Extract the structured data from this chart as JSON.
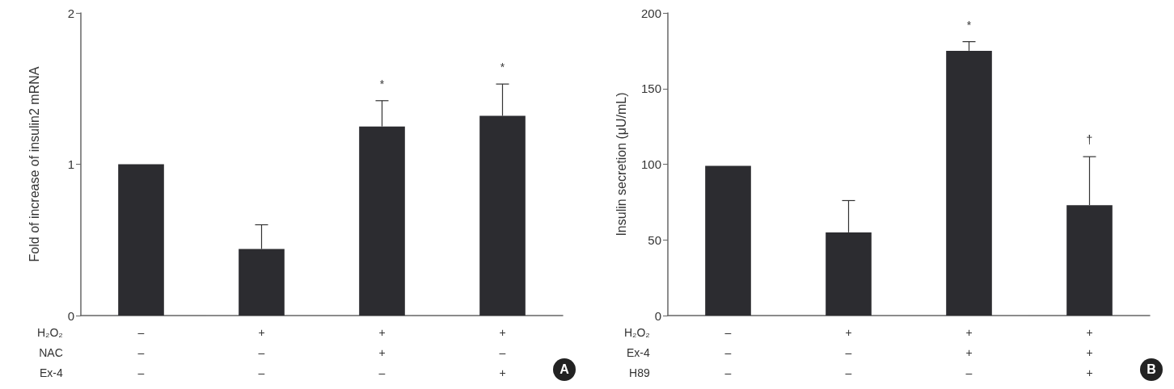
{
  "chart_data": [
    {
      "type": "bar",
      "ylabel": "Fold of increase of insulin2 mRNA",
      "xlabel": "H₂O₂\nNAC\nEx-4",
      "categories": [
        "–\n–\n–",
        "+\n–\n–",
        "+\n+\n–",
        "+\n–\n+"
      ],
      "color": "#2c2c30",
      "values": [
        1.0,
        0.44,
        1.25,
        1.32
      ],
      "errors": [
        null,
        [
          0.44,
          0.6
        ],
        [
          1.25,
          1.42
        ],
        [
          1.32,
          1.53
        ]
      ],
      "ylim": [
        0,
        2
      ],
      "yticks": [
        0,
        1,
        2
      ],
      "grid": false,
      "annotations": [
        {
          "text": "*",
          "x": "+\n+\n–",
          "y": 1.42
        },
        {
          "text": "*",
          "x": "+\n–\n+",
          "y": 1.53
        },
        "A"
      ]
    },
    {
      "type": "bar",
      "ylabel": "Insulin secretion (μU/mL)",
      "xlabel": "H₂O₂\nEx-4\nH89",
      "categories": [
        "–\n–\n–",
        "+\n–\n–",
        "+\n+\n–",
        "+\n+\n+"
      ],
      "color": "#2c2c30",
      "values": [
        99,
        55,
        175,
        73
      ],
      "errors": [
        null,
        [
          55,
          76
        ],
        [
          175,
          181
        ],
        [
          73,
          105
        ]
      ],
      "ylim": [
        0,
        200
      ],
      "yticks": [
        0,
        50,
        100,
        150,
        200
      ],
      "grid": false,
      "annotations": [
        {
          "text": "*",
          "x": "+\n+\n–",
          "y": 181
        },
        {
          "text": "†",
          "x": "+\n+\n+",
          "y": 105
        },
        "B"
      ]
    }
  ]
}
